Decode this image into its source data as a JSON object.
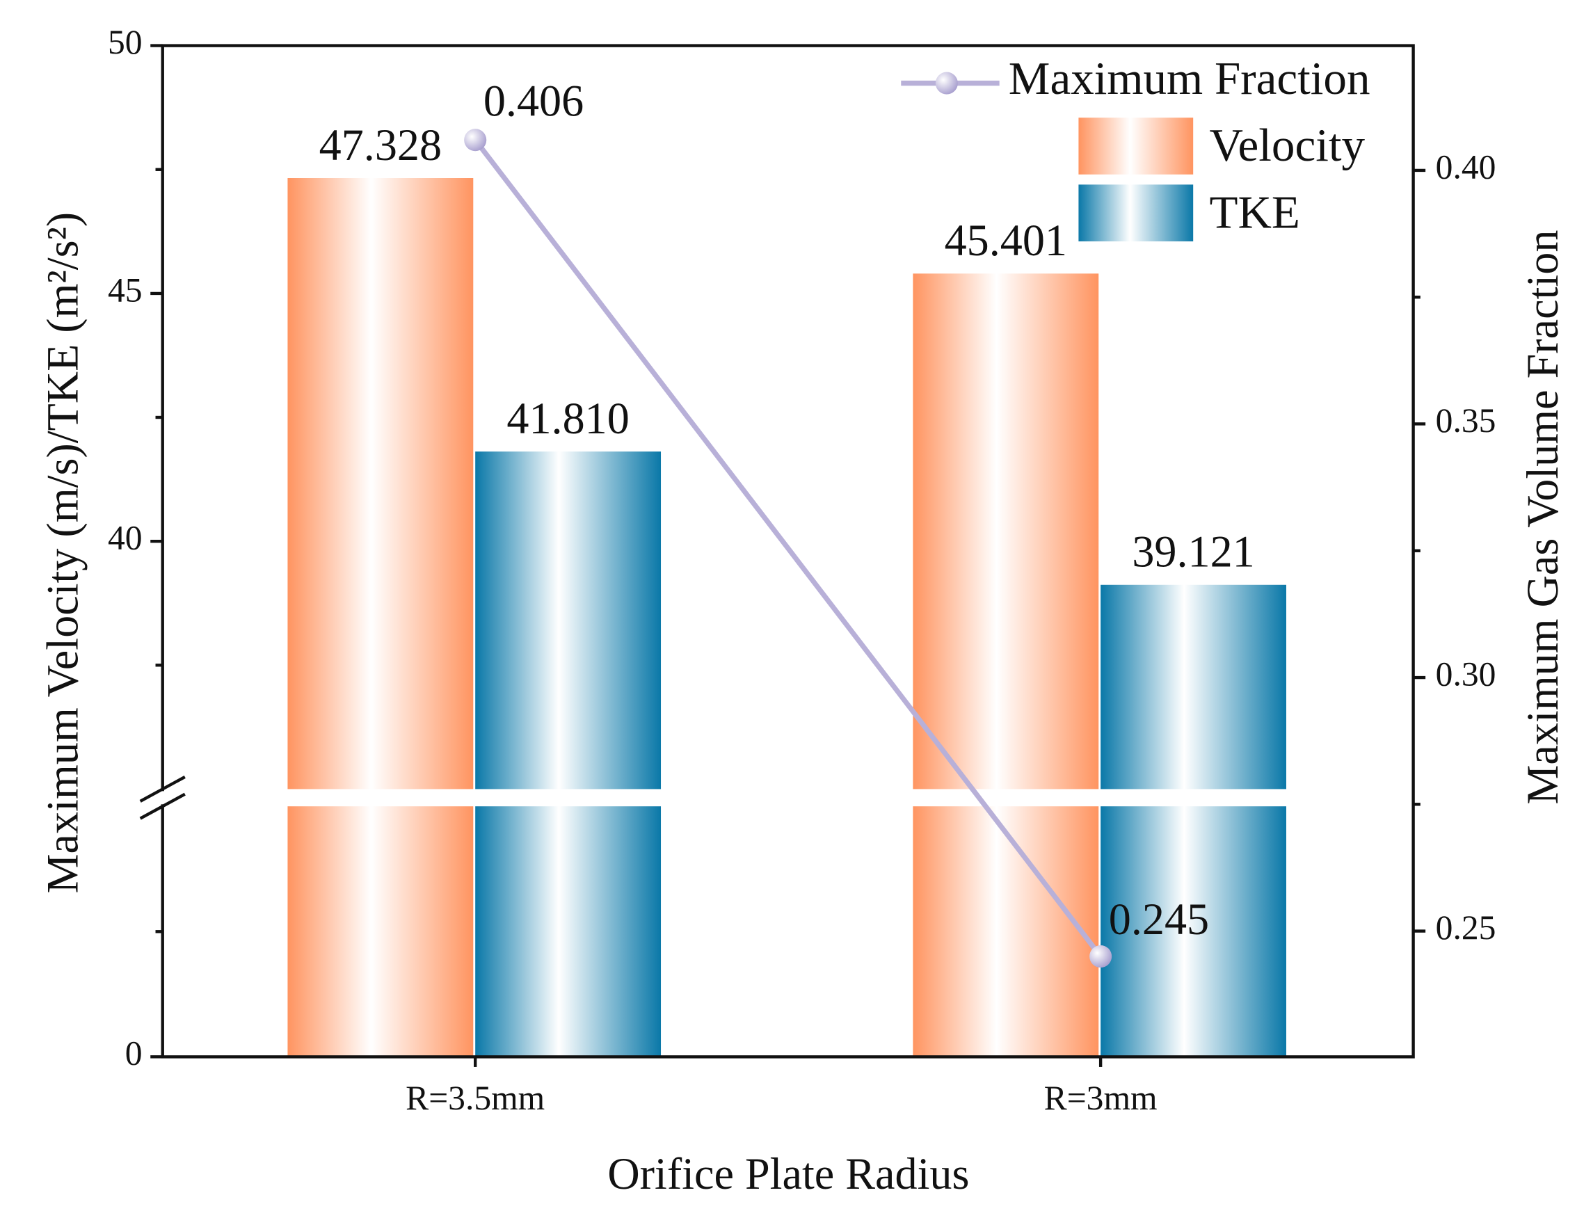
{
  "chart_data": {
    "type": "bar",
    "x_label": "Orifice Plate Radius",
    "y_label": "Maximum Velocity (m/s)/TKE (m²/s²)",
    "y2_label": "Maximum Gas Volume Fraction",
    "categories": [
      "R=3.5mm",
      "R=3mm"
    ],
    "ylim": [
      0,
      50
    ],
    "ybreak": [
      10,
      35
    ],
    "yticks": [
      0,
      40,
      45,
      50
    ],
    "yminor_ticks": [
      5,
      37.5,
      42.5,
      47.5
    ],
    "y2lim": [
      0.2252,
      0.4246
    ],
    "y2ticks": [
      {
        "value": 0.25,
        "label": "0.25"
      },
      {
        "value": 0.3,
        "label": "0.30"
      },
      {
        "value": 0.35,
        "label": "0.35"
      },
      {
        "value": 0.4,
        "label": "0.40"
      }
    ],
    "y2minor_ticks": [
      0.275,
      0.325,
      0.375
    ],
    "series": [
      {
        "name": "Velocity",
        "color": "#ff9460",
        "values": [
          47.328,
          45.401
        ],
        "value_labels": [
          "47.328",
          "45.401"
        ]
      },
      {
        "name": "TKE",
        "color": "#0a78a8",
        "values": [
          41.81,
          39.121
        ],
        "value_labels": [
          "41.810",
          "39.121"
        ]
      },
      {
        "name": "Maximum Fraction",
        "color": "#b8b0d8",
        "type": "line",
        "axis": "y2",
        "values": [
          0.406,
          0.245
        ],
        "value_labels": [
          "0.406",
          "0.245"
        ]
      }
    ],
    "legend": "upper right"
  }
}
